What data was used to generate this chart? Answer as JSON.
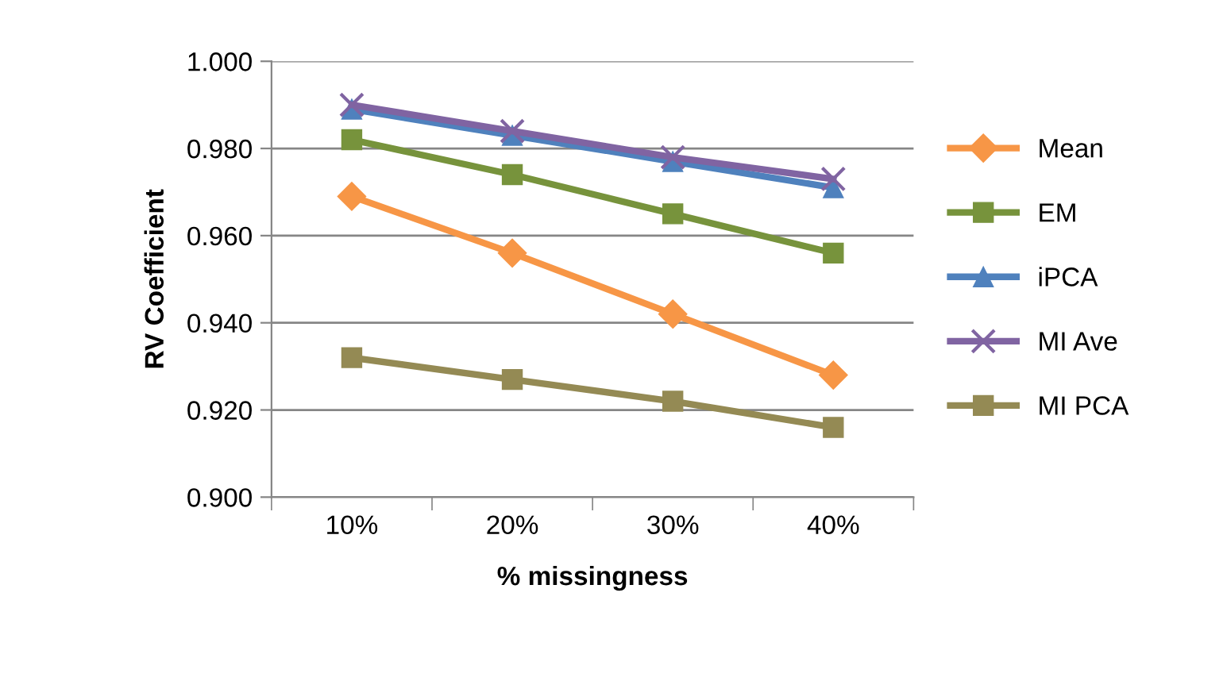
{
  "chart_data": {
    "type": "line",
    "xlabel": "% missingness",
    "ylabel": "RV Coefficient",
    "categories": [
      "10%",
      "20%",
      "30%",
      "40%"
    ],
    "ylim": [
      0.9,
      1.0
    ],
    "yticks": [
      {
        "value": 0.9,
        "label": "0.900"
      },
      {
        "value": 0.92,
        "label": "0.920"
      },
      {
        "value": 0.94,
        "label": "0.940"
      },
      {
        "value": 0.96,
        "label": "0.960"
      },
      {
        "value": 0.98,
        "label": "0.980"
      },
      {
        "value": 1.0,
        "label": "1.000"
      }
    ],
    "grid": "y",
    "legend": "right",
    "series": [
      {
        "name": "Mean",
        "color": "#f79646",
        "marker": "diamond",
        "values": [
          0.969,
          0.956,
          0.942,
          0.928
        ]
      },
      {
        "name": "EM",
        "color": "#77933c",
        "marker": "square",
        "values": [
          0.982,
          0.974,
          0.965,
          0.956
        ]
      },
      {
        "name": "iPCA",
        "color": "#4f81bd",
        "marker": "triangle",
        "values": [
          0.989,
          0.983,
          0.977,
          0.971
        ]
      },
      {
        "name": "MI Ave",
        "color": "#8064a2",
        "marker": "cross",
        "values": [
          0.99,
          0.984,
          0.978,
          0.973
        ]
      },
      {
        "name": "MI PCA",
        "color": "#948a54",
        "marker": "square",
        "values": [
          0.932,
          0.927,
          0.922,
          0.916
        ]
      }
    ]
  }
}
